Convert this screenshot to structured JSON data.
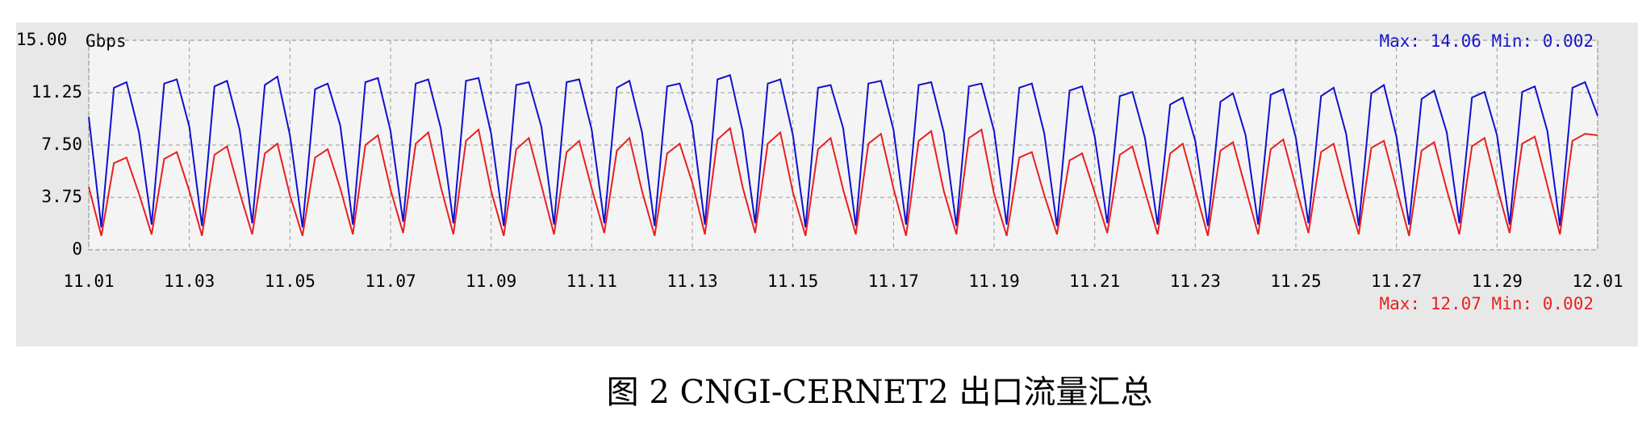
{
  "chart_data": {
    "type": "line",
    "y_unit": "Gbps",
    "annotations": [
      "Max: 14.06 Min: 0.002",
      "Max: 12.07 Min: 0.002"
    ],
    "caption": "图 2   CNGI-CERNET2 出口流量汇总",
    "xlim": [
      0,
      30
    ],
    "xticks": [
      {
        "value": 0,
        "label": "11.01"
      },
      {
        "value": 2,
        "label": "11.03"
      },
      {
        "value": 4,
        "label": "11.05"
      },
      {
        "value": 6,
        "label": "11.07"
      },
      {
        "value": 8,
        "label": "11.09"
      },
      {
        "value": 10,
        "label": "11.11"
      },
      {
        "value": 12,
        "label": "11.13"
      },
      {
        "value": 14,
        "label": "11.15"
      },
      {
        "value": 16,
        "label": "11.17"
      },
      {
        "value": 18,
        "label": "11.19"
      },
      {
        "value": 20,
        "label": "11.21"
      },
      {
        "value": 22,
        "label": "11.23"
      },
      {
        "value": 24,
        "label": "11.25"
      },
      {
        "value": 26,
        "label": "11.27"
      },
      {
        "value": 28,
        "label": "11.29"
      },
      {
        "value": 30,
        "label": "12.01"
      }
    ],
    "ylim": [
      0,
      15
    ],
    "yticks": [
      0,
      3.75,
      {
        "value": 7.5,
        "label": "7.50"
      },
      11.25,
      {
        "value": 15,
        "label": "15.00"
      }
    ],
    "grid": true,
    "x": [
      0,
      0.25,
      0.5,
      0.75,
      1,
      1.25,
      1.5,
      1.75,
      2,
      2.25,
      2.5,
      2.75,
      3,
      3.25,
      3.5,
      3.75,
      4,
      4.25,
      4.5,
      4.75,
      5,
      5.25,
      5.5,
      5.75,
      6,
      6.25,
      6.5,
      6.75,
      7,
      7.25,
      7.5,
      7.75,
      8,
      8.25,
      8.5,
      8.75,
      9,
      9.25,
      9.5,
      9.75,
      10,
      10.25,
      10.5,
      10.75,
      11,
      11.25,
      11.5,
      11.75,
      12,
      12.25,
      12.5,
      12.75,
      13,
      13.25,
      13.5,
      13.75,
      14,
      14.25,
      14.5,
      14.75,
      15,
      15.25,
      15.5,
      15.75,
      16,
      16.25,
      16.5,
      16.75,
      17,
      17.25,
      17.5,
      17.75,
      18,
      18.25,
      18.5,
      18.75,
      19,
      19.25,
      19.5,
      19.75,
      20,
      20.25,
      20.5,
      20.75,
      21,
      21.25,
      21.5,
      21.75,
      22,
      22.25,
      22.5,
      22.75,
      23,
      23.25,
      23.5,
      23.75,
      24,
      24.25,
      24.5,
      24.75,
      25,
      25.25,
      25.5,
      25.75,
      26,
      26.25,
      26.5,
      26.75,
      27,
      27.25,
      27.5,
      27.75,
      28,
      28.25,
      28.5,
      28.75,
      29,
      29.25,
      29.5,
      29.75,
      30
    ],
    "series": [
      {
        "color": "#1010d0",
        "values": [
          9.5,
          1.6,
          11.6,
          12.0,
          8.4,
          1.8,
          11.9,
          12.2,
          8.8,
          1.7,
          11.7,
          12.1,
          8.6,
          1.9,
          11.8,
          12.4,
          8.2,
          1.6,
          11.5,
          11.9,
          8.9,
          1.8,
          12.0,
          12.3,
          8.5,
          2.0,
          11.9,
          12.2,
          8.7,
          1.9,
          12.1,
          12.3,
          8.3,
          1.7,
          11.8,
          12.0,
          8.8,
          1.8,
          12.0,
          12.2,
          8.6,
          1.9,
          11.6,
          12.1,
          8.4,
          1.7,
          11.7,
          11.9,
          8.9,
          1.8,
          12.2,
          12.5,
          8.5,
          1.9,
          11.9,
          12.2,
          8.2,
          1.6,
          11.6,
          11.8,
          8.7,
          1.7,
          11.9,
          12.1,
          8.6,
          1.8,
          11.8,
          12.0,
          8.4,
          1.7,
          11.7,
          11.9,
          8.5,
          1.8,
          11.6,
          11.9,
          8.3,
          1.7,
          11.4,
          11.7,
          8.1,
          1.9,
          11.0,
          11.3,
          8.0,
          1.8,
          10.4,
          10.9,
          7.8,
          1.7,
          10.6,
          11.2,
          8.2,
          1.8,
          11.1,
          11.5,
          8.0,
          1.9,
          11.0,
          11.6,
          8.3,
          1.7,
          11.2,
          11.8,
          8.1,
          1.8,
          10.8,
          11.4,
          8.4,
          1.9,
          10.9,
          11.3,
          8.2,
          1.8,
          11.3,
          11.7,
          8.5,
          1.7,
          11.6,
          12.0,
          9.6
        ]
      },
      {
        "color": "#e82020",
        "values": [
          4.5,
          1.0,
          6.2,
          6.6,
          4.0,
          1.1,
          6.5,
          7.0,
          4.2,
          1.0,
          6.8,
          7.4,
          4.1,
          1.1,
          6.9,
          7.6,
          3.9,
          1.0,
          6.6,
          7.2,
          4.4,
          1.1,
          7.5,
          8.2,
          4.3,
          1.2,
          7.6,
          8.4,
          4.5,
          1.1,
          7.8,
          8.6,
          4.2,
          1.0,
          7.2,
          8.0,
          4.6,
          1.1,
          7.0,
          7.8,
          4.4,
          1.2,
          7.1,
          8.0,
          4.2,
          1.0,
          6.9,
          7.6,
          4.8,
          1.1,
          7.9,
          8.7,
          4.5,
          1.2,
          7.6,
          8.4,
          4.1,
          1.0,
          7.2,
          8.0,
          4.3,
          1.1,
          7.6,
          8.3,
          4.4,
          1.0,
          7.8,
          8.5,
          4.2,
          1.1,
          8.0,
          8.6,
          4.0,
          1.0,
          6.6,
          7.0,
          3.9,
          1.1,
          6.4,
          6.9,
          4.1,
          1.2,
          6.8,
          7.4,
          4.2,
          1.1,
          6.9,
          7.6,
          4.3,
          1.0,
          7.1,
          7.7,
          4.4,
          1.1,
          7.2,
          7.9,
          4.5,
          1.2,
          7.0,
          7.6,
          4.2,
          1.1,
          7.3,
          7.8,
          4.4,
          1.0,
          7.1,
          7.7,
          4.3,
          1.1,
          7.4,
          8.0,
          4.5,
          1.2,
          7.6,
          8.1,
          4.6,
          1.1,
          7.8,
          8.3,
          8.2
        ]
      }
    ]
  }
}
